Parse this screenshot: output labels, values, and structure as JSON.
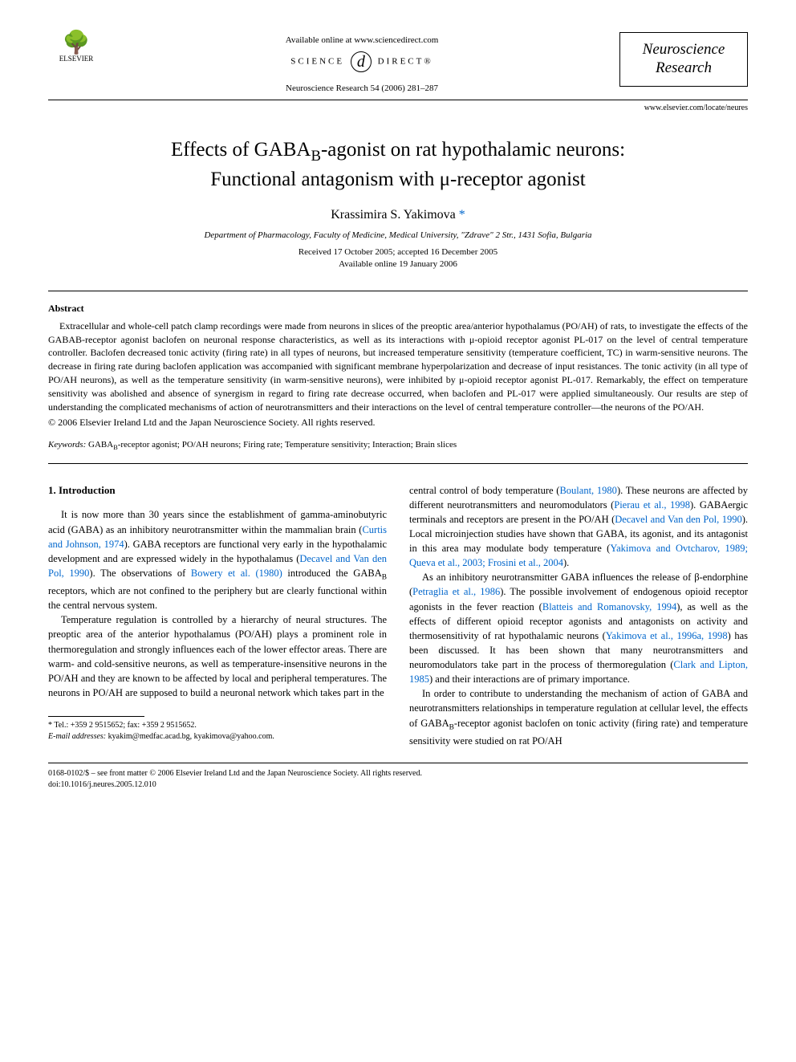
{
  "header": {
    "publisher": "ELSEVIER",
    "available_online": "Available online at www.sciencedirect.com",
    "science_label_left": "SCIENCE",
    "science_label_right": "DIRECT®",
    "journal_ref": "Neuroscience Research 54 (2006) 281–287",
    "journal_name_line1": "Neuroscience",
    "journal_name_line2": "Research",
    "locate_url": "www.elsevier.com/locate/neures"
  },
  "article": {
    "title_line1": "Effects of GABAB-agonist on rat hypothalamic neurons:",
    "title_line2": "Functional antagonism with μ-receptor agonist",
    "author": "Krassimira S. Yakimova",
    "affiliation": "Department of Pharmacology, Faculty of Medicine, Medical University, \"Zdrave\" 2 Str., 1431 Sofia, Bulgaria",
    "received": "Received 17 October 2005; accepted 16 December 2005",
    "available": "Available online 19 January 2006"
  },
  "abstract": {
    "heading": "Abstract",
    "text": "Extracellular and whole-cell patch clamp recordings were made from neurons in slices of the preoptic area/anterior hypothalamus (PO/AH) of rats, to investigate the effects of the GABAB-receptor agonist baclofen on neuronal response characteristics, as well as its interactions with μ-opioid receptor agonist PL-017 on the level of central temperature controller. Baclofen decreased tonic activity (firing rate) in all types of neurons, but increased temperature sensitivity (temperature coefficient, TC) in warm-sensitive neurons. The decrease in firing rate during baclofen application was accompanied with significant membrane hyperpolarization and decrease of input resistances. The tonic activity (in all type of PO/AH neurons), as well as the temperature sensitivity (in warm-sensitive neurons), were inhibited by μ-opioid receptor agonist PL-017. Remarkably, the effect on temperature sensitivity was abolished and absence of synergism in regard to firing rate decrease occurred, when baclofen and PL-017 were applied simultaneously. Our results are step of understanding the complicated mechanisms of action of neurotransmitters and their interactions on the level of central temperature controller—the neurons of the PO/AH.",
    "copyright": "© 2006 Elsevier Ireland Ltd and the Japan Neuroscience Society. All rights reserved."
  },
  "keywords": {
    "label": "Keywords:",
    "text": " GABAB-receptor agonist; PO/AH neurons; Firing rate; Temperature sensitivity; Interaction; Brain slices"
  },
  "section": {
    "heading": "1. Introduction"
  },
  "body": {
    "col1_p1_a": "It is now more than 30 years since the establishment of gamma-aminobutyric acid (GABA) as an inhibitory neurotransmitter within the mammalian brain (",
    "col1_p1_ref1": "Curtis and Johnson, 1974",
    "col1_p1_b": "). GABA receptors are functional very early in the hypothalamic development and are expressed widely in the hypothalamus (",
    "col1_p1_ref2": "Decavel and Van den Pol, 1990",
    "col1_p1_c": "). The observations of ",
    "col1_p1_ref3": "Bowery et al. (1980)",
    "col1_p1_d": " introduced the GABAB receptors, which are not confined to the periphery but are clearly functional within the central nervous system.",
    "col1_p2": "Temperature regulation is controlled by a hierarchy of neural structures. The preoptic area of the anterior hypothalamus (PO/AH) plays a prominent role in thermoregulation and strongly influences each of the lower effector areas. There are warm- and cold-sensitive neurons, as well as temperature-insensitive neurons in the PO/AH and they are known to be affected by local and peripheral temperatures. The neurons in PO/AH are supposed to build a neuronal network which takes part in the",
    "col2_p1_a": "central control of body temperature (",
    "col2_p1_ref1": "Boulant, 1980",
    "col2_p1_b": "). These neurons are affected by different neurotransmitters and neuromodulators (",
    "col2_p1_ref2": "Pierau et al., 1998",
    "col2_p1_c": "). GABAergic terminals and receptors are present in the PO/AH (",
    "col2_p1_ref3": "Decavel and Van den Pol, 1990",
    "col2_p1_d": "). Local microinjection studies have shown that GABA, its agonist, and its antagonist in this area may modulate body temperature (",
    "col2_p1_ref4": "Yakimova and Ovtcharov, 1989; Queva et al., 2003; Frosini et al., 2004",
    "col2_p1_e": ").",
    "col2_p2_a": "As an inhibitory neurotransmitter GABA influences the release of β-endorphine (",
    "col2_p2_ref1": "Petraglia et al., 1986",
    "col2_p2_b": "). The possible involvement of endogenous opioid receptor agonists in the fever reaction (",
    "col2_p2_ref2": "Blatteis and Romanovsky, 1994",
    "col2_p2_c": "), as well as the effects of different opioid receptor agonists and antagonists on activity and thermosensitivity of rat hypothalamic neurons (",
    "col2_p2_ref3": "Yakimova et al., 1996a, 1998",
    "col2_p2_d": ") has been discussed. It has been shown that many neurotransmitters and neuromodulators take part in the process of thermoregulation (",
    "col2_p2_ref4": "Clark and Lipton, 1985",
    "col2_p2_e": ") and their interactions are of primary importance.",
    "col2_p3": "In order to contribute to understanding the mechanism of action of GABA and neurotransmitters relationships in temperature regulation at cellular level, the effects of GABAB-receptor agonist baclofen on tonic activity (firing rate) and temperature sensitivity were studied on rat PO/AH"
  },
  "footnotes": {
    "tel": "* Tel.: +359 2 9515652; fax: +359 2 9515652.",
    "email_label": "E-mail addresses:",
    "email": " kyakim@medfac.acad.bg, kyakimova@yahoo.com."
  },
  "footer": {
    "front_matter": "0168-0102/$ – see front matter © 2006 Elsevier Ireland Ltd and the Japan Neuroscience Society. All rights reserved.",
    "doi": "doi:10.1016/j.neures.2005.12.010"
  },
  "colors": {
    "link": "#0066cc",
    "text": "#000000",
    "background": "#ffffff"
  }
}
